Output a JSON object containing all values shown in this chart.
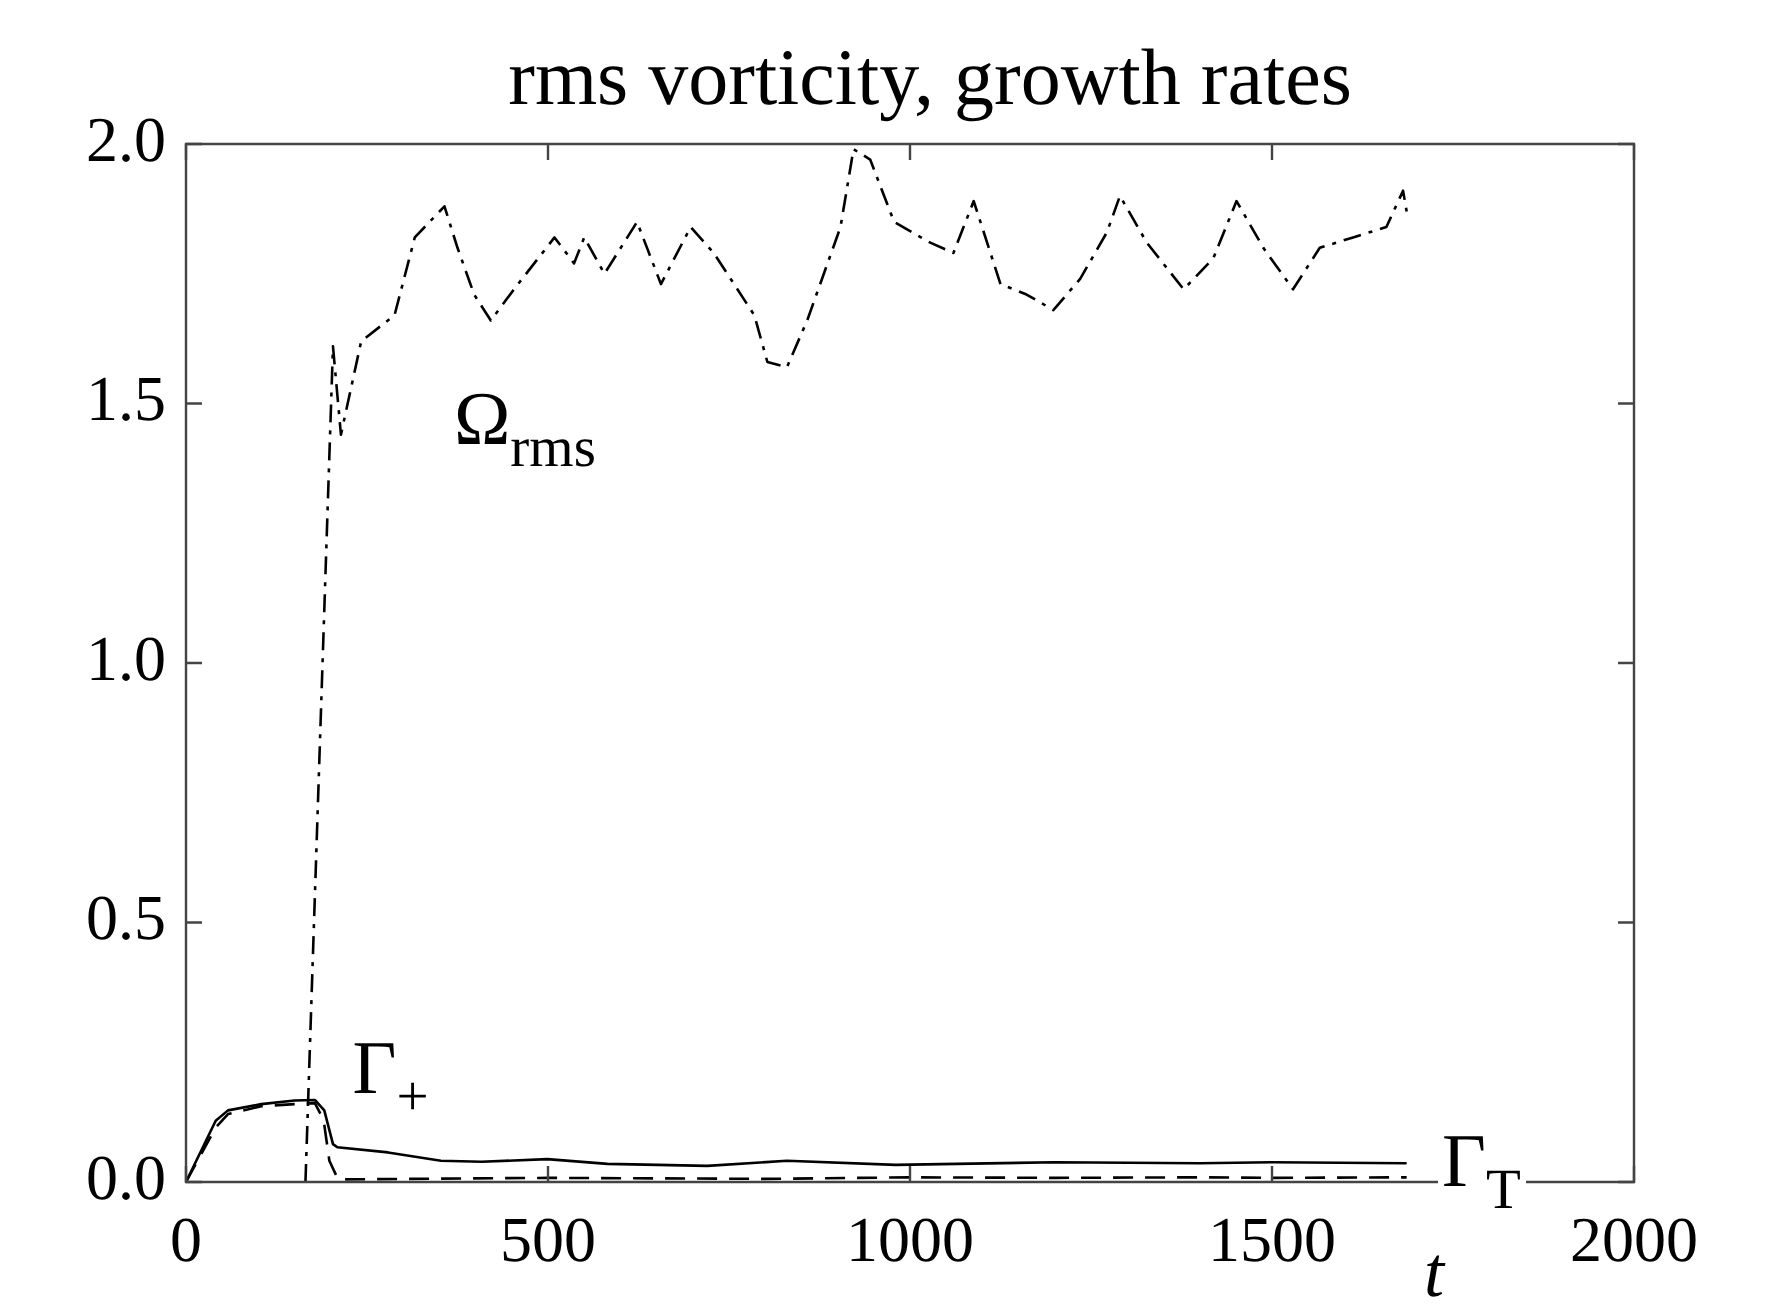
{
  "chart_data": {
    "type": "line",
    "title": "rms vorticity, growth rates",
    "xlabel": "t",
    "xlim": [
      0,
      2000
    ],
    "xticks": [
      0,
      500,
      1000,
      1500,
      2000
    ],
    "ylim": [
      0,
      2.0
    ],
    "yticks": [
      {
        "value": 0,
        "label": "0.0"
      },
      {
        "value": 0.5,
        "label": "0.5"
      },
      {
        "value": 1,
        "label": "1.0"
      },
      {
        "value": 1.5,
        "label": "1.5"
      },
      {
        "value": 2,
        "label": "2.0"
      }
    ],
    "grid": false,
    "legend": false,
    "marker": "none",
    "series": [
      {
        "name": "Ω$_{rms}$",
        "color": "#000000",
        "line_style": "dashdot",
        "x": [
          165,
          203,
          214,
          242,
          288,
          316,
          357,
          375,
          398,
          421,
          453,
          509,
          536,
          550,
          578,
          623,
          656,
          697,
          729,
          785,
          803,
          830,
          858,
          904,
          922,
          945,
          978,
          1028,
          1060,
          1088,
          1125,
          1161,
          1198,
          1235,
          1272,
          1290,
          1327,
          1378,
          1419,
          1451,
          1488,
          1529,
          1566,
          1612,
          1658,
          1681,
          1686
        ],
        "values": [
          0,
          1.61,
          1.44,
          1.62,
          1.67,
          1.82,
          1.88,
          1.8,
          1.71,
          1.66,
          1.72,
          1.82,
          1.77,
          1.82,
          1.75,
          1.85,
          1.73,
          1.84,
          1.79,
          1.67,
          1.58,
          1.57,
          1.66,
          1.84,
          1.99,
          1.97,
          1.85,
          1.81,
          1.79,
          1.89,
          1.73,
          1.71,
          1.68,
          1.74,
          1.83,
          1.9,
          1.81,
          1.72,
          1.78,
          1.89,
          1.8,
          1.72,
          1.8,
          1.82,
          1.84,
          1.91,
          1.87
        ]
      },
      {
        "name": "Γ$_{+}$",
        "color": "#000000",
        "line_style": "solid",
        "x": [
          0,
          41,
          58,
          104,
          150,
          178,
          191,
          203,
          209,
          279,
          352,
          408,
          499,
          582,
          720,
          830,
          980,
          1200,
          1400,
          1500,
          1686
        ],
        "values": [
          0,
          0.118,
          0.138,
          0.15,
          0.157,
          0.158,
          0.138,
          0.073,
          0.067,
          0.057,
          0.041,
          0.039,
          0.044,
          0.035,
          0.031,
          0.041,
          0.033,
          0.038,
          0.036,
          0.038,
          0.036
        ]
      },
      {
        "name": "Γ$_{T}$",
        "color": "#000000",
        "line_style": "dashed",
        "x": [
          0,
          41,
          58,
          104,
          150,
          178,
          190,
          198,
          210,
          500,
          800,
          1000,
          1200,
          1400,
          1500,
          1686
        ],
        "values": [
          0,
          0.105,
          0.131,
          0.146,
          0.15,
          0.152,
          0.12,
          0.041,
          0.005,
          0.008,
          0.006,
          0.009,
          0.008,
          0.009,
          0.008,
          0.009
        ]
      }
    ]
  }
}
